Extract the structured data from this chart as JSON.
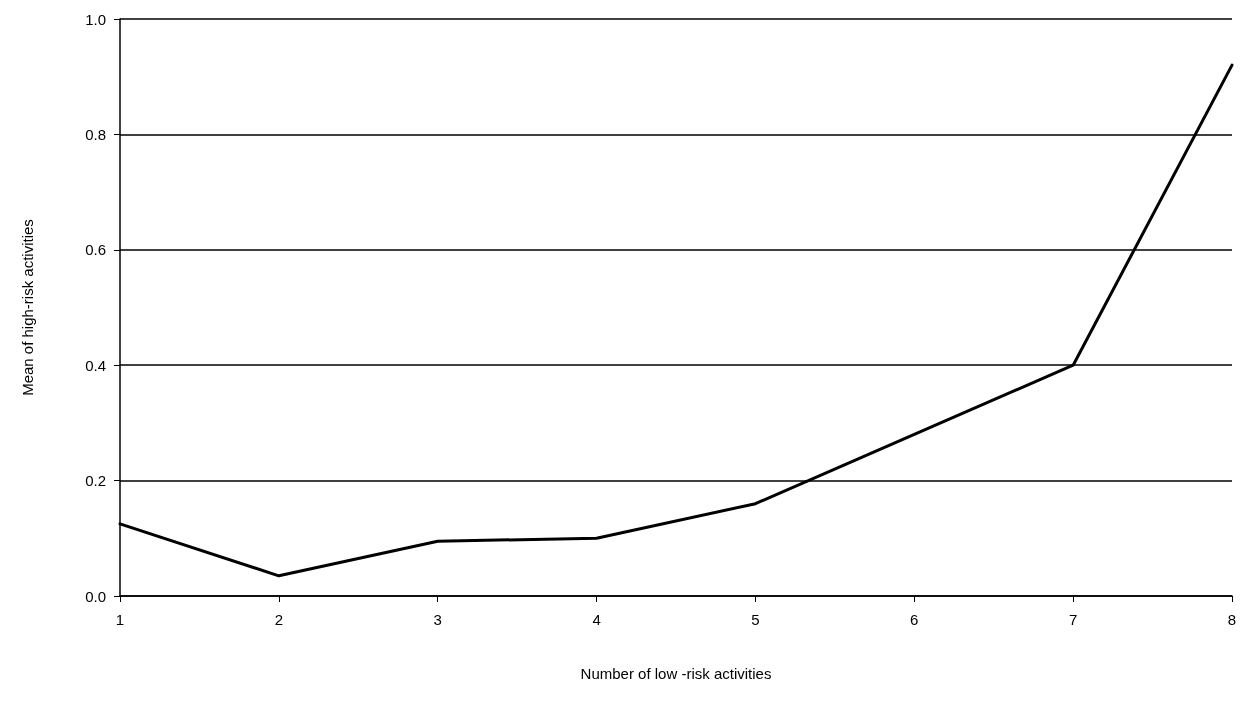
{
  "chart_data": {
    "type": "line",
    "xlabel": "Number of low -risk activities",
    "ylabel": "Mean of high-risk activities",
    "x": [
      1,
      2,
      3,
      4,
      5,
      6,
      7,
      8
    ],
    "series": [
      {
        "color": "#000000",
        "values": [
          0.125,
          0.035,
          0.095,
          0.1,
          0.16,
          0.28,
          0.4,
          0.92
        ]
      }
    ],
    "xlim": [
      1,
      8
    ],
    "xticks": [
      1,
      2,
      3,
      4,
      5,
      6,
      7,
      8
    ],
    "ylim": [
      0,
      1
    ],
    "yticks": [
      {
        "value": 0,
        "label": "0.0"
      },
      {
        "value": 0.2,
        "label": "0.2"
      },
      {
        "value": 0.4,
        "label": "0.4"
      },
      {
        "value": 0.6,
        "label": "0.6"
      },
      {
        "value": 0.8,
        "label": "0.8"
      },
      {
        "value": 1,
        "label": "1.0"
      }
    ],
    "grid": "y",
    "marker": "none",
    "line_style": "solid"
  }
}
